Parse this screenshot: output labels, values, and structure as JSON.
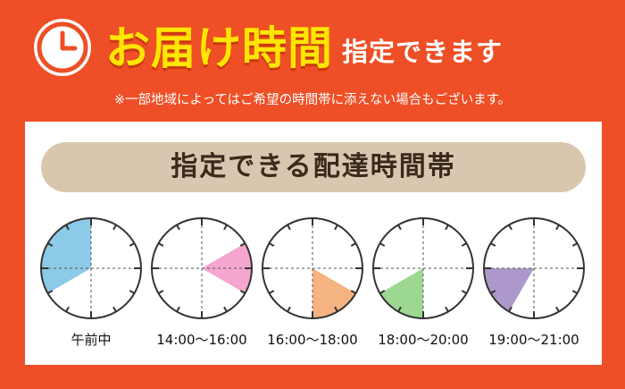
{
  "header": {
    "icon": "clock-icon",
    "title_highlight": "お届け時間",
    "title_rest": "指定できます",
    "note": "※一部地域によってはご希望の時間帯に添えない場合もございます。"
  },
  "colors": {
    "background": "#EE4F26",
    "highlight": "#FFE600",
    "banner": "#DAC6AE"
  },
  "panel": {
    "banner_title": "指定できる配達時間帯",
    "slots": [
      {
        "label": "午前中",
        "color": "#8CCBE8",
        "icon": "clock-morning-icon"
      },
      {
        "label": "14:00〜16:00",
        "color": "#F4A6CF",
        "icon": "clock-14-16-icon"
      },
      {
        "label": "16:00〜18:00",
        "color": "#F5B381",
        "icon": "clock-16-18-icon"
      },
      {
        "label": "18:00〜20:00",
        "color": "#9DD893",
        "icon": "clock-18-20-icon"
      },
      {
        "label": "19:00〜21:00",
        "color": "#AD98CB",
        "icon": "clock-19-21-icon"
      }
    ]
  }
}
